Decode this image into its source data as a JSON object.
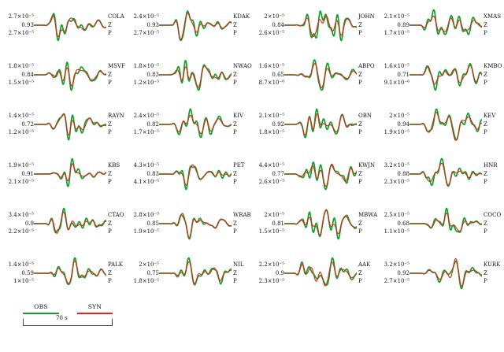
{
  "figure": {
    "legend": {
      "obs_label": "OBS",
      "syn_label": "SYN",
      "time_scale_label": "70 s"
    },
    "colors": {
      "obs_green": "#0ca129",
      "syn_red": "#e02417",
      "text": "#111111",
      "bracket": "#444444"
    },
    "row_labels": {
      "component": "Z",
      "phase": "P"
    }
  },
  "chart_data": {
    "type": "line",
    "description": "Grid of 24 seismogram waveform comparisons (observed vs synthetic), vertical component Z, P-wave window. Each panel lists observed amplitude (top), cross-correlation value (middle), synthetic amplitude (bottom) on the left, and station code / Z / P on the right.",
    "series_names": [
      "OBS",
      "SYN"
    ],
    "legend_position": "bottom-left",
    "time_scale_seconds": 70,
    "grid": {
      "rows": 6,
      "columns": 4
    },
    "stations": [
      {
        "station": "COLA",
        "amp_obs": "2.7×10⁻⁵",
        "cc": "0.93",
        "amp_syn": "2.7×10⁻⁵",
        "comp": "Z",
        "phase": "P"
      },
      {
        "station": "KDAK",
        "amp_obs": "2.4×10⁻⁵",
        "cc": "0.93",
        "amp_syn": "2.7×10⁻⁵",
        "comp": "Z",
        "phase": "P"
      },
      {
        "station": "JOHN",
        "amp_obs": "2×10⁻⁵",
        "cc": "0.84",
        "amp_syn": "2.6×10⁻⁵",
        "comp": "Z",
        "phase": "P"
      },
      {
        "station": "XMAS",
        "amp_obs": "2.1×10⁻⁵",
        "cc": "0.89",
        "amp_syn": "1.7×10⁻⁵",
        "comp": "Z",
        "phase": "P"
      },
      {
        "station": "MSVF",
        "amp_obs": "1.8×10⁻⁵",
        "cc": "0.84",
        "amp_syn": "1.5×10⁻⁵",
        "comp": "Z",
        "phase": "P"
      },
      {
        "station": "NWAO",
        "amp_obs": "1.8×10⁻⁵",
        "cc": "0.83",
        "amp_syn": "1.2×10⁻⁵",
        "comp": "Z",
        "phase": "P"
      },
      {
        "station": "ABPO",
        "amp_obs": "1.6×10⁻⁵",
        "cc": "0.65",
        "amp_syn": "8.7×10⁻⁶",
        "comp": "Z",
        "phase": "P"
      },
      {
        "station": "KMBO",
        "amp_obs": "1.6×10⁻⁵",
        "cc": "0.71",
        "amp_syn": "9.1×10⁻⁶",
        "comp": "Z",
        "phase": "P"
      },
      {
        "station": "RAYN",
        "amp_obs": "1.4×10⁻⁵",
        "cc": "0.72",
        "amp_syn": "1.2×10⁻⁵",
        "comp": "Z",
        "phase": "P"
      },
      {
        "station": "KIV",
        "amp_obs": "2.4×10⁻⁵",
        "cc": "0.82",
        "amp_syn": "1.7×10⁻⁵",
        "comp": "Z",
        "phase": "P"
      },
      {
        "station": "OBN",
        "amp_obs": "2.1×10⁻⁵",
        "cc": "0.92",
        "amp_syn": "1.8×10⁻⁵",
        "comp": "Z",
        "phase": "P"
      },
      {
        "station": "KEV",
        "amp_obs": "2×10⁻⁵",
        "cc": "0.94",
        "amp_syn": "1.9×10⁻⁵",
        "comp": "Z",
        "phase": "P"
      },
      {
        "station": "KBS",
        "amp_obs": "1.9×10⁻⁵",
        "cc": "0.91",
        "amp_syn": "2.1×10⁻⁵",
        "comp": "Z",
        "phase": "P"
      },
      {
        "station": "PET",
        "amp_obs": "4.3×10⁻⁵",
        "cc": "0.83",
        "amp_syn": "4.1×10⁻⁵",
        "comp": "Z",
        "phase": "P"
      },
      {
        "station": "KWJN",
        "amp_obs": "4.4×10⁻⁵",
        "cc": "0.77",
        "amp_syn": "2.6×10⁻⁵",
        "comp": "Z",
        "phase": "P"
      },
      {
        "station": "HNR",
        "amp_obs": "3.2×10⁻⁵",
        "cc": "0.88",
        "amp_syn": "2.3×10⁻⁵",
        "comp": "Z",
        "phase": "P"
      },
      {
        "station": "CTAO",
        "amp_obs": "3.4×10⁻⁵",
        "cc": "0.9",
        "amp_syn": "2.2×10⁻⁵",
        "comp": "Z",
        "phase": "P"
      },
      {
        "station": "WRAB",
        "amp_obs": "2.8×10⁻⁵",
        "cc": "0.85",
        "amp_syn": "1.9×10⁻⁵",
        "comp": "Z",
        "phase": "P"
      },
      {
        "station": "MBWA",
        "amp_obs": "2×10⁻⁵",
        "cc": "0.81",
        "amp_syn": "1.5×10⁻⁵",
        "comp": "Z",
        "phase": "P"
      },
      {
        "station": "COCO",
        "amp_obs": "2.5×10⁻⁵",
        "cc": "0.68",
        "amp_syn": "1.1×10⁻⁵",
        "comp": "Z",
        "phase": "P"
      },
      {
        "station": "PALK",
        "amp_obs": "1.4×10⁻⁵",
        "cc": "0.59",
        "amp_syn": "1×10⁻⁵",
        "comp": "Z",
        "phase": "P"
      },
      {
        "station": "NIL",
        "amp_obs": "2×10⁻⁵",
        "cc": "0.75",
        "amp_syn": "1.8×10⁻⁵",
        "comp": "Z",
        "phase": "P"
      },
      {
        "station": "AAK",
        "amp_obs": "2.2×10⁻⁵",
        "cc": "0.9",
        "amp_syn": "2.3×10⁻⁵",
        "comp": "Z",
        "phase": "P"
      },
      {
        "station": "KURK",
        "amp_obs": "3.2×10⁻⁵",
        "cc": "0.92",
        "amp_syn": "2.7×10⁻⁵",
        "comp": "Z",
        "phase": "P"
      }
    ]
  }
}
